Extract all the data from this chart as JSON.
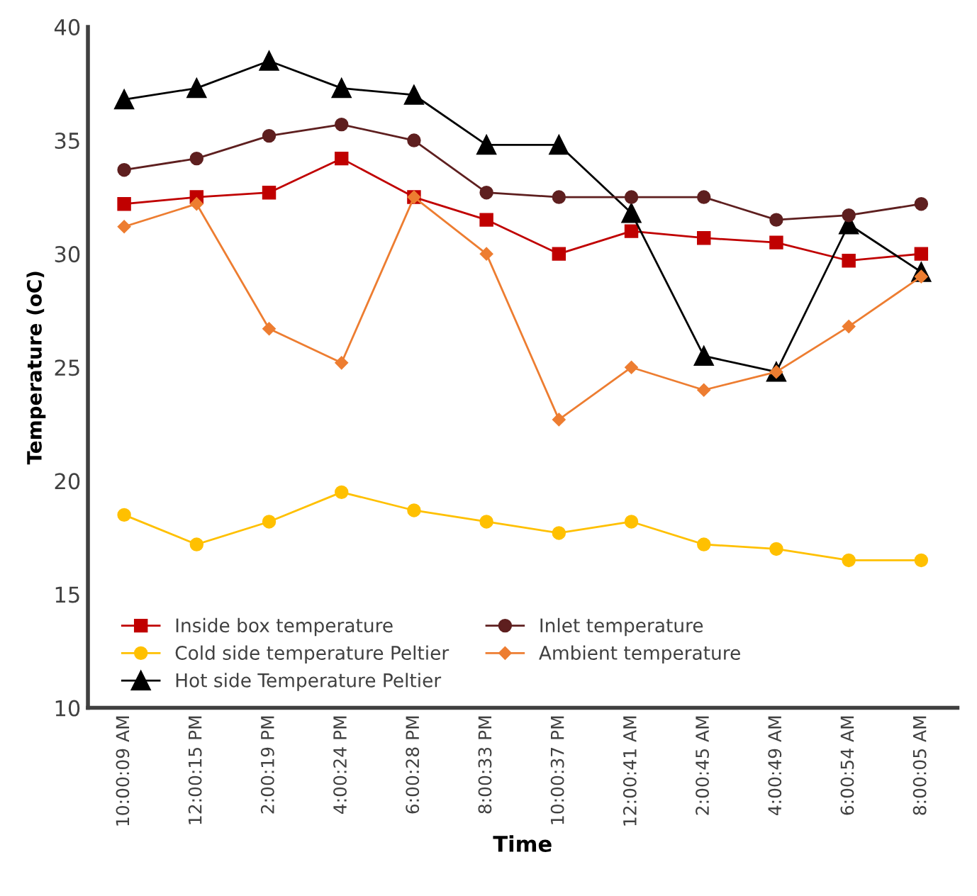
{
  "chart_data": {
    "type": "line",
    "xlabel": "Time",
    "ylabel": "Temperature (oC)",
    "categories": [
      "10:00:09 AM",
      "12:00:15 PM",
      "2:00:19 PM",
      "4:00:24 PM",
      "6:00:28 PM",
      "8:00:33 PM",
      "10:00:37 PM",
      "12:00:41 AM",
      "2:00:45 AM",
      "4:00:49 AM",
      "6:00:54 AM",
      "8:00:05 AM"
    ],
    "series": [
      {
        "name": "Inside box temperature",
        "color": "#c00000",
        "marker": "square",
        "values": [
          32.2,
          32.5,
          32.7,
          34.2,
          32.5,
          31.5,
          30.0,
          31.0,
          30.7,
          30.5,
          29.7,
          30.0
        ]
      },
      {
        "name": "Cold side temperature Peltier",
        "color": "#ffc000",
        "marker": "circle",
        "values": [
          18.5,
          17.2,
          18.2,
          19.5,
          18.7,
          18.2,
          17.7,
          18.2,
          17.2,
          17.0,
          16.5,
          16.5
        ]
      },
      {
        "name": "Hot side Temperature Peltier",
        "color": "#000000",
        "marker": "triangle",
        "values": [
          36.8,
          37.3,
          38.5,
          37.3,
          37.0,
          34.8,
          34.8,
          31.8,
          25.5,
          24.8,
          31.3,
          29.2
        ]
      },
      {
        "name": "Inlet temperature",
        "color": "#5e1f1f",
        "marker": "circle",
        "values": [
          33.7,
          34.2,
          35.2,
          35.7,
          35.0,
          32.7,
          32.5,
          32.5,
          32.5,
          31.5,
          31.7,
          32.2
        ]
      },
      {
        "name": "Ambient temperature",
        "color": "#ed7d31",
        "marker": "diamond",
        "values": [
          31.2,
          32.2,
          26.7,
          25.2,
          32.5,
          30.0,
          22.7,
          25.0,
          24.0,
          24.8,
          26.8,
          29.0
        ]
      }
    ],
    "ylim": [
      10,
      40
    ],
    "yticks": [
      10,
      15,
      20,
      25,
      30,
      35,
      40
    ],
    "grid": false,
    "legend": "bottom left",
    "line_style": "solid"
  }
}
